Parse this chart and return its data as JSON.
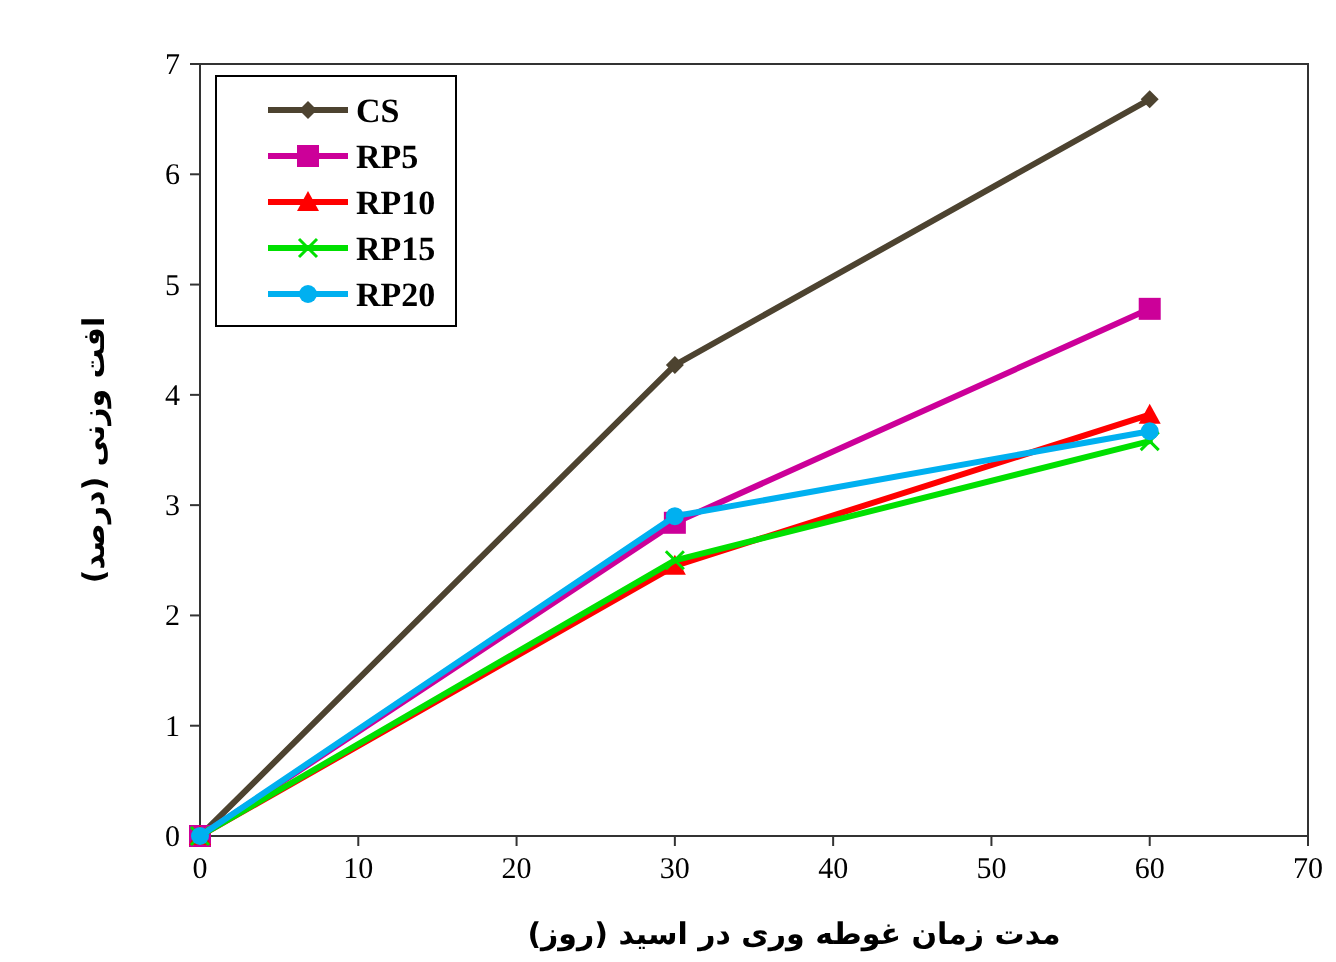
{
  "chart_data": {
    "type": "line",
    "xlabel": "مدت زمان غوطه وری در اسید (روز)",
    "ylabel": "افت وزنی (درصد)",
    "x": [
      0,
      30,
      60
    ],
    "xlim": [
      0,
      70
    ],
    "xticks": [
      0,
      10,
      20,
      30,
      40,
      50,
      60,
      70
    ],
    "ylim": [
      0,
      7
    ],
    "yticks": [
      0,
      1,
      2,
      3,
      4,
      5,
      6,
      7
    ],
    "grid": false,
    "legend": "top left",
    "line_style": "solid",
    "series": [
      {
        "name": "CS",
        "color": "#4d4330",
        "marker": "diamond",
        "values": [
          0,
          4.27,
          6.68
        ]
      },
      {
        "name": "RP5",
        "color": "#cc0099",
        "marker": "square",
        "values": [
          0,
          2.84,
          4.78
        ]
      },
      {
        "name": "RP10",
        "color": "#ff0000",
        "marker": "triangle",
        "values": [
          0,
          2.45,
          3.82
        ]
      },
      {
        "name": "RP15",
        "color": "#00e000",
        "marker": "cross",
        "values": [
          0,
          2.5,
          3.58
        ]
      },
      {
        "name": "RP20",
        "color": "#00b0f0",
        "marker": "circle",
        "values": [
          0,
          2.9,
          3.67
        ]
      }
    ]
  }
}
